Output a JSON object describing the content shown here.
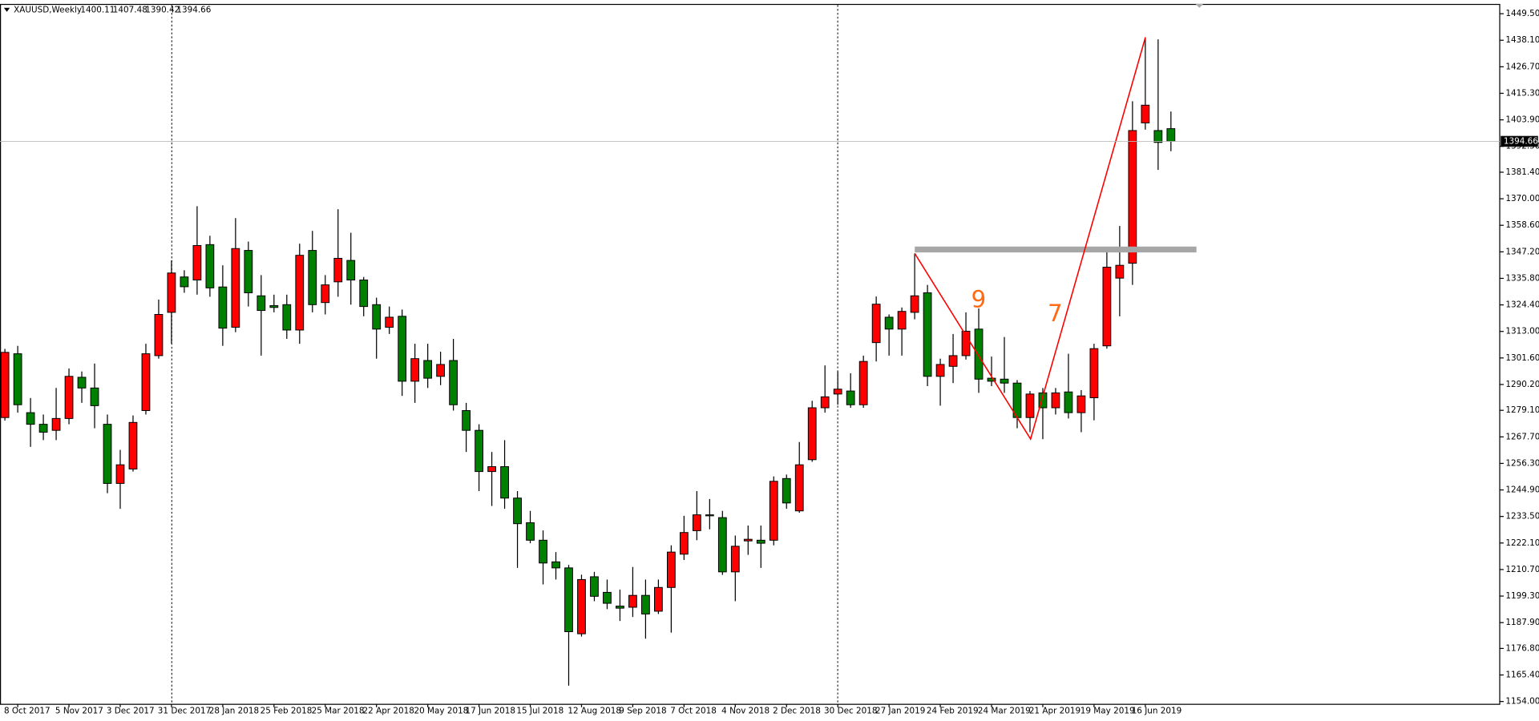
{
  "chart_data": {
    "type": "candlestick",
    "title": "XAUUSD,Weekly",
    "categories": [
      null,
      "8 Oct 2017",
      null,
      null,
      null,
      "5 Nov 2017",
      null,
      null,
      null,
      "3 Dec 2017",
      null,
      null,
      null,
      "31 Dec 2017",
      null,
      null,
      null,
      "28 Jan 2018",
      null,
      null,
      null,
      "25 Feb 2018",
      null,
      null,
      null,
      "25 Mar 2018",
      null,
      null,
      null,
      "22 Apr 2018",
      null,
      null,
      null,
      "20 May 2018",
      null,
      null,
      null,
      "17 Jun 2018",
      null,
      null,
      null,
      "15 Jul 2018",
      null,
      null,
      null,
      "12 Aug 2018",
      null,
      null,
      null,
      "9 Sep 2018",
      null,
      null,
      null,
      "7 Oct 2018",
      null,
      null,
      null,
      "4 Nov 2018",
      null,
      null,
      null,
      "2 Dec 2018",
      null,
      null,
      null,
      "30 Dec 2018",
      null,
      null,
      null,
      "27 Jan 2019",
      null,
      null,
      null,
      "24 Feb 2019",
      null,
      null,
      null,
      "24 Mar 2019",
      null,
      null,
      null,
      "21 Apr 2019",
      null,
      null,
      null,
      "19 May 2019",
      null,
      null,
      null,
      "16 Jun 2019",
      null,
      null
    ],
    "open": [
      1276,
      1303.4,
      1278.1,
      1273.1,
      1270.5,
      1275.6,
      1293.3,
      1288.7,
      1273.1,
      1247.7,
      1253.9,
      1279,
      1302.6,
      1321.2,
      1336.4,
      1335.1,
      1350.3,
      1332.1,
      1314.8,
      1347.8,
      1328.3,
      1324.1,
      1324.5,
      1313.6,
      1347.8,
      1325.4,
      1334.3,
      1343.5,
      1335.1,
      1324.5,
      1314.8,
      1319.5,
      1291.6,
      1300.5,
      1293.7,
      1300.5,
      1279,
      1270.5,
      1252.8,
      1254.9,
      1241.4,
      1230.8,
      1223.3,
      1214,
      1211.4,
      1183.1,
      1207.6,
      1200.9,
      1195,
      1194.5,
      1199.6,
      1192.8,
      1203,
      1217.3,
      1227.4,
      1234.2,
      1233,
      1209.7,
      1223,
      1223.3,
      1223.3,
      1249.8,
      1235.9,
      1257.9,
      1280.2,
      1286.1,
      1287.4,
      1281.5,
      1308.2,
      1319.1,
      1314,
      1321.2,
      1329.6,
      1293.7,
      1298,
      1302.6,
      1314,
      1292.9,
      1292.5,
      1290.8,
      1276,
      1286.6,
      1280.2,
      1287,
      1278.1,
      1284.5,
      1306.8,
      1335.9,
      1342.3,
      1402.6,
      1399.3,
      1400.11
    ],
    "high": [
      1305.5,
      1306.8,
      1284.4,
      1277.3,
      1288.7,
      1297.1,
      1295.8,
      1299.2,
      1277.3,
      1262.1,
      1276.9,
      1307.7,
      1326.7,
      1343.5,
      1339.3,
      1366.8,
      1354.1,
      1341.4,
      1361.7,
      1351.6,
      1337.2,
      1328.8,
      1328.8,
      1350.7,
      1356.2,
      1337.2,
      1365.5,
      1355.4,
      1336.4,
      1327.5,
      1323.7,
      1322.4,
      1307.7,
      1307.7,
      1304.3,
      1309.8,
      1282.3,
      1273.1,
      1261.2,
      1266.3,
      1244.4,
      1235.9,
      1227.5,
      1218.2,
      1212.7,
      1208.5,
      1209.7,
      1206.4,
      1202.1,
      1211.8,
      1206.4,
      1206.4,
      1221.1,
      1233.8,
      1244.4,
      1241,
      1235.9,
      1225.3,
      1229.6,
      1229.6,
      1250.7,
      1251.5,
      1265.5,
      1283.2,
      1298.4,
      1295.8,
      1295,
      1302.6,
      1328,
      1320.3,
      1323.3,
      1346.5,
      1333,
      1301.3,
      1311.9,
      1321.2,
      1322.9,
      1302.2,
      1310.6,
      1292.1,
      1287.4,
      1288.7,
      1288.7,
      1303.4,
      1287.8,
      1307.7,
      1347.8,
      1358.3,
      1411.9,
      1439.4,
      1438.5,
      1407.48
    ],
    "low": [
      1274.7,
      1278.1,
      1263.4,
      1266.3,
      1266.3,
      1273.1,
      1282.3,
      1271.4,
      1243.5,
      1236.8,
      1252.8,
      1277.3,
      1301.3,
      1307.7,
      1329.6,
      1328.8,
      1327.9,
      1306.8,
      1312.7,
      1323.7,
      1302.6,
      1321.2,
      1309.8,
      1307.7,
      1321.2,
      1320.3,
      1327.9,
      1324.5,
      1319.5,
      1301.3,
      1311.9,
      1285.3,
      1282.3,
      1288.7,
      1289.9,
      1279,
      1261.2,
      1244.4,
      1238,
      1236.8,
      1211.4,
      1222,
      1204.3,
      1206.4,
      1160.8,
      1181.9,
      1197.1,
      1193.7,
      1188.6,
      1190.3,
      1181,
      1191.6,
      1183.6,
      1214.8,
      1223.3,
      1228,
      1208.4,
      1197.1,
      1217,
      1211.4,
      1221.1,
      1236.8,
      1235.1,
      1257,
      1278.1,
      1281.5,
      1280.2,
      1280.2,
      1300.1,
      1302.6,
      1302.6,
      1318.2,
      1289.5,
      1281.1,
      1290.8,
      1300.9,
      1286.6,
      1289.5,
      1286.6,
      1271.4,
      1269.7,
      1266.7,
      1277.3,
      1275.6,
      1269.7,
      1274.8,
      1305.6,
      1319.5,
      1333,
      1399.7,
      1382.4,
      1390.42
    ],
    "close": [
      1304,
      1281.5,
      1273.1,
      1269.7,
      1275.6,
      1293.7,
      1288.7,
      1281.1,
      1247.7,
      1255.7,
      1273.9,
      1303.4,
      1320.3,
      1338.1,
      1332.2,
      1349.9,
      1331.7,
      1314.4,
      1348.6,
      1329.6,
      1322,
      1323.3,
      1313.6,
      1345.7,
      1324.5,
      1333,
      1344.4,
      1335.1,
      1323.7,
      1314,
      1319.1,
      1291.6,
      1301.3,
      1292.9,
      1298.8,
      1281.5,
      1270.5,
      1252.8,
      1254.9,
      1241.4,
      1230.4,
      1223.3,
      1213.5,
      1211.4,
      1184,
      1206.4,
      1199.2,
      1196.2,
      1194.1,
      1199.6,
      1191.6,
      1203,
      1218.2,
      1226.6,
      1234.2,
      1234,
      1209.7,
      1220.7,
      1223.7,
      1222,
      1248.6,
      1239.3,
      1255.7,
      1280.2,
      1284.9,
      1288.2,
      1281.5,
      1300.1,
      1324.7,
      1314,
      1321.6,
      1328.3,
      1293.7,
      1298.8,
      1302.6,
      1313.1,
      1292.5,
      1291.6,
      1290.8,
      1276,
      1286.1,
      1280.2,
      1286.6,
      1278.1,
      1285.3,
      1305.6,
      1340.6,
      1341.4,
      1399.3,
      1410.2,
      1394.2,
      1394.66
    ],
    "up_color": "#ff0000",
    "down_color": "#008000",
    "ylim": [
      1152.8,
      1453.7
    ],
    "yticks": [
      {
        "value": 1449.5,
        "label": "1449.50"
      },
      {
        "value": 1438.1,
        "label": "1438.10"
      },
      {
        "value": 1426.7,
        "label": "1426.70"
      },
      {
        "value": 1415.3,
        "label": "1415.30"
      },
      {
        "value": 1403.9,
        "label": "1403.90"
      },
      {
        "value": 1392.5,
        "label": "1392.50"
      },
      {
        "value": 1381.4,
        "label": "1381.40"
      },
      {
        "value": 1370,
        "label": "1370.00"
      },
      {
        "value": 1358.6,
        "label": "1358.60"
      },
      {
        "value": 1347.2,
        "label": "1347.20"
      },
      {
        "value": 1335.8,
        "label": "1335.80"
      },
      {
        "value": 1324.4,
        "label": "1324.40"
      },
      {
        "value": 1313,
        "label": "1313.00"
      },
      {
        "value": 1301.6,
        "label": "1301.60"
      },
      {
        "value": 1290.2,
        "label": "1290.20"
      },
      {
        "value": 1279.1,
        "label": "1279.10"
      },
      {
        "value": 1267.7,
        "label": "1267.70"
      },
      {
        "value": 1256.3,
        "label": "1256.30"
      },
      {
        "value": 1244.9,
        "label": "1244.90"
      },
      {
        "value": 1233.5,
        "label": "1233.50"
      },
      {
        "value": 1222.1,
        "label": "1222.10"
      },
      {
        "value": 1210.7,
        "label": "1210.70"
      },
      {
        "value": 1199.3,
        "label": "1199.30"
      },
      {
        "value": 1187.9,
        "label": "1187.90"
      },
      {
        "value": 1176.8,
        "label": "1176.80"
      },
      {
        "value": 1165.4,
        "label": "1165.40"
      },
      {
        "value": 1154,
        "label": "1154.00"
      }
    ],
    "grid": false,
    "annotations": [
      "9",
      "7"
    ]
  }
}
